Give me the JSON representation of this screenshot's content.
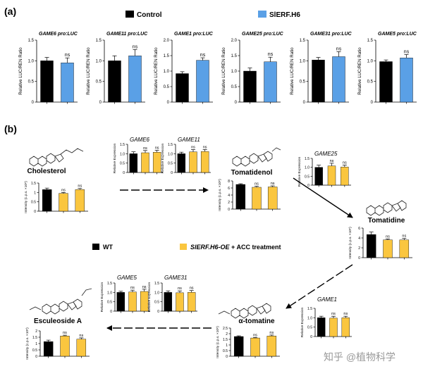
{
  "figure": {
    "panel_a_label": "(a)",
    "panel_b_label": "(b)",
    "legend_a": {
      "control": "Control",
      "treatment": "SlERF.H6",
      "control_color": "#000000",
      "treatment_color": "#5aa0e6"
    },
    "legend_b": {
      "wt": "WT",
      "treatment_italic": "SlERF.H6-OE",
      "treatment_rest": " + ACC treatment",
      "wt_color": "#000000",
      "treatment_color": "#fac63f"
    },
    "compounds": {
      "cholesterol": "Cholesterol",
      "tomatidenol": "Tomatidenol",
      "tomatidine": "Tomatidine",
      "alpha_tomatine": "α-tomatine",
      "esculeoside_a": "Esculeoside A"
    },
    "watermark": "知乎 @植物科学"
  },
  "chart_data": [
    {
      "id": "a1",
      "type": "bar",
      "title": "GAME6 pro:LUC",
      "ylabel": "Relative LUC/REN Ratio",
      "ylim": [
        0,
        1.5
      ],
      "ticks": [
        0,
        0.5,
        1,
        1.5
      ],
      "ticklabels": [
        "0",
        "0.5",
        "1.0",
        "1.5"
      ],
      "series": [
        {
          "name": "Control",
          "values": [
            1.0
          ],
          "err": [
            0.08
          ]
        },
        {
          "name": "SlERF.H6",
          "values": [
            0.95
          ],
          "err": [
            0.12
          ]
        }
      ],
      "annotations": [
        "ns"
      ]
    },
    {
      "id": "a2",
      "type": "bar",
      "title": "GAME11 pro:LUC",
      "ylabel": "Relative LUC/REN Ratio",
      "ylim": [
        0,
        1.5
      ],
      "ticks": [
        0,
        0.5,
        1,
        1.5
      ],
      "ticklabels": [
        "0",
        "0.5",
        "1.0",
        "1.5"
      ],
      "series": [
        {
          "name": "Control",
          "values": [
            1.0
          ],
          "err": [
            0.12
          ]
        },
        {
          "name": "SlERF.H6",
          "values": [
            1.12
          ],
          "err": [
            0.15
          ]
        }
      ],
      "annotations": [
        "ns"
      ]
    },
    {
      "id": "a3",
      "type": "bar",
      "title": "GAME1 pro:LUC",
      "ylabel": "Relative LUC/REN Ratio",
      "ylim": [
        0,
        2.0
      ],
      "ticks": [
        0,
        0.5,
        1,
        1.5,
        2
      ],
      "ticklabels": [
        "0",
        "0.5",
        "1.0",
        "1.5",
        "2.0"
      ],
      "series": [
        {
          "name": "Control",
          "values": [
            0.92
          ],
          "err": [
            0.06
          ]
        },
        {
          "name": "SlERF.H6",
          "values": [
            1.35
          ],
          "err": [
            0.08
          ]
        }
      ],
      "annotations": [
        "ns"
      ]
    },
    {
      "id": "a4",
      "type": "bar",
      "title": "GAME25 pro:LUC",
      "ylabel": "Relative LUC/REN Ratio",
      "ylim": [
        0,
        2.0
      ],
      "ticks": [
        0,
        0.5,
        1,
        1.5,
        2
      ],
      "ticklabels": [
        "0",
        "0.5",
        "1.0",
        "1.5",
        "2.0"
      ],
      "series": [
        {
          "name": "Control",
          "values": [
            1.0
          ],
          "err": [
            0.1
          ]
        },
        {
          "name": "SlERF.H6",
          "values": [
            1.3
          ],
          "err": [
            0.15
          ]
        }
      ],
      "annotations": [
        "ns"
      ]
    },
    {
      "id": "a5",
      "type": "bar",
      "title": "GAME31 pro:LUC",
      "ylabel": "Relative LUC/REN Ratio",
      "ylim": [
        0,
        1.5
      ],
      "ticks": [
        0,
        0.5,
        1,
        1.5
      ],
      "ticklabels": [
        "0",
        "0.5",
        "1.0",
        "1.5"
      ],
      "series": [
        {
          "name": "Control",
          "values": [
            1.02
          ],
          "err": [
            0.06
          ]
        },
        {
          "name": "SlERF.H6",
          "values": [
            1.1
          ],
          "err": [
            0.12
          ]
        }
      ],
      "annotations": [
        "ns"
      ]
    },
    {
      "id": "a6",
      "type": "bar",
      "title": "GAME5 pro:LUC",
      "ylabel": "Relative LUC/REN Ratio",
      "ylim": [
        0,
        1.5
      ],
      "ticks": [
        0,
        0.5,
        1,
        1.5
      ],
      "ticklabels": [
        "0",
        "0.5",
        "1.0",
        "1.5"
      ],
      "series": [
        {
          "name": "Control",
          "values": [
            0.98
          ],
          "err": [
            0.04
          ]
        },
        {
          "name": "SlERF.H6",
          "values": [
            1.07
          ],
          "err": [
            0.08
          ]
        }
      ],
      "annotations": [
        "ns"
      ]
    },
    {
      "id": "b_chol",
      "type": "bar",
      "ylabel": "Intensity (c.p.s. ×10⁸)",
      "ylim": [
        0,
        1.5
      ],
      "ticks": [
        0,
        0.5,
        1,
        1.5
      ],
      "ticklabels": [
        "0",
        "0.5",
        "1",
        "1.5"
      ],
      "values": [
        1.15,
        0.95,
        1.15
      ],
      "err": [
        0.08,
        0.05,
        0.06
      ],
      "annotations": [
        "",
        "ns",
        "ns"
      ]
    },
    {
      "id": "b_game6",
      "type": "bar",
      "title": "GAME6",
      "ylabel": "Relative Expression",
      "ylim": [
        0,
        1.5
      ],
      "ticks": [
        0,
        0.5,
        1,
        1.5
      ],
      "ticklabels": [
        "0",
        "0.5",
        "1.0",
        "1.5"
      ],
      "values": [
        1.0,
        1.05,
        1.08
      ],
      "err": [
        0.1,
        0.12,
        0.1
      ],
      "annotations": [
        "",
        "ns",
        "ns"
      ]
    },
    {
      "id": "b_game11",
      "type": "bar",
      "title": "GAME11",
      "ylabel": "Relative Expression",
      "ylim": [
        0,
        1.5
      ],
      "ticks": [
        0,
        0.5,
        1,
        1.5
      ],
      "ticklabels": [
        "0",
        "0.5",
        "1.0",
        "1.5"
      ],
      "values": [
        1.0,
        1.1,
        1.12
      ],
      "err": [
        0.08,
        0.12,
        0.1
      ],
      "annotations": [
        "",
        "ns",
        "ns"
      ]
    },
    {
      "id": "b_tomatidenol",
      "type": "bar",
      "ylabel": "Intensity (c.p.s. ×10⁸)",
      "ylim": [
        0,
        8
      ],
      "ticks": [
        0,
        2,
        4,
        6,
        8
      ],
      "ticklabels": [
        "0",
        "2",
        "4",
        "6",
        "8"
      ],
      "values": [
        7.0,
        6.2,
        6.3
      ],
      "err": [
        0.2,
        0.3,
        0.3
      ],
      "annotations": [
        "",
        "ns",
        "ns"
      ]
    },
    {
      "id": "b_game25",
      "type": "bar",
      "title": "GAME25",
      "ylabel": "Relative Expression",
      "ylim": [
        0,
        1.5
      ],
      "ticks": [
        0,
        0.5,
        1,
        1.5
      ],
      "ticklabels": [
        "0",
        "0.5",
        "1.0",
        "1.5"
      ],
      "values": [
        1.0,
        1.08,
        1.02
      ],
      "err": [
        0.12,
        0.15,
        0.1
      ],
      "annotations": [
        "",
        "ns",
        "ns"
      ]
    },
    {
      "id": "b_tomatidine",
      "type": "bar",
      "ylabel": "Intensity (c.p.s. ×10⁸)",
      "ylim": [
        0,
        6
      ],
      "ticks": [
        0,
        2,
        4,
        6
      ],
      "ticklabels": [
        "0",
        "2",
        "4",
        "6"
      ],
      "values": [
        4.7,
        3.6,
        3.6
      ],
      "err": [
        0.5,
        0.2,
        0.3
      ],
      "annotations": [
        "",
        "ns",
        "ns"
      ]
    },
    {
      "id": "b_game5",
      "type": "bar",
      "title": "GAME5",
      "ylabel": "Relative Expression",
      "ylim": [
        0,
        1.5
      ],
      "ticks": [
        0,
        0.5,
        1,
        1.5
      ],
      "ticklabels": [
        "0",
        "0.5",
        "1.0",
        "1.5"
      ],
      "values": [
        1.0,
        1.02,
        1.05
      ],
      "err": [
        0.06,
        0.1,
        0.12
      ],
      "annotations": [
        "",
        "ns",
        "ns"
      ]
    },
    {
      "id": "b_game31",
      "type": "bar",
      "title": "GAME31",
      "ylabel": "Relative Expression",
      "ylim": [
        0,
        1.5
      ],
      "ticks": [
        0,
        0.5,
        1,
        1.5
      ],
      "ticklabels": [
        "0",
        "0.5",
        "1.0",
        "1.5"
      ],
      "values": [
        1.0,
        0.98,
        1.0
      ],
      "err": [
        0.08,
        0.1,
        0.1
      ],
      "annotations": [
        "",
        "ns",
        "ns"
      ]
    },
    {
      "id": "b_game1",
      "type": "bar",
      "title": "GAME1",
      "ylabel": "Relative Expression",
      "ylim": [
        0,
        1.5
      ],
      "ticks": [
        0,
        0.5,
        1,
        1.5
      ],
      "ticklabels": [
        "0",
        "0.5",
        "1.0",
        "1.5"
      ],
      "values": [
        1.0,
        0.98,
        1.0
      ],
      "err": [
        0.08,
        0.1,
        0.08
      ],
      "annotations": [
        "",
        "ns",
        "ns"
      ]
    },
    {
      "id": "b_esculeoside",
      "type": "bar",
      "ylabel": "Intensity (c.p.s. ×10⁸)",
      "ylim": [
        0,
        2
      ],
      "ticks": [
        0,
        0.5,
        1,
        1.5,
        2
      ],
      "ticklabels": [
        "0",
        "0.5",
        "1",
        "1.5",
        "2"
      ],
      "values": [
        1.15,
        1.6,
        1.35
      ],
      "err": [
        0.12,
        0.06,
        0.1
      ],
      "annotations": [
        "",
        "ns",
        "ns"
      ]
    },
    {
      "id": "b_tomatine",
      "type": "bar",
      "ylabel": "Intensity (c.p.s. ×10⁸)",
      "ylim": [
        0,
        2.5
      ],
      "ticks": [
        0,
        0.5,
        1,
        1.5,
        2,
        2.5
      ],
      "ticklabels": [
        "0",
        "0.5",
        "1",
        "1.5",
        "2",
        "2.5"
      ],
      "values": [
        1.75,
        1.62,
        1.8
      ],
      "err": [
        0.06,
        0.05,
        0.08
      ],
      "annotations": [
        "",
        "ns",
        "ns"
      ]
    }
  ]
}
